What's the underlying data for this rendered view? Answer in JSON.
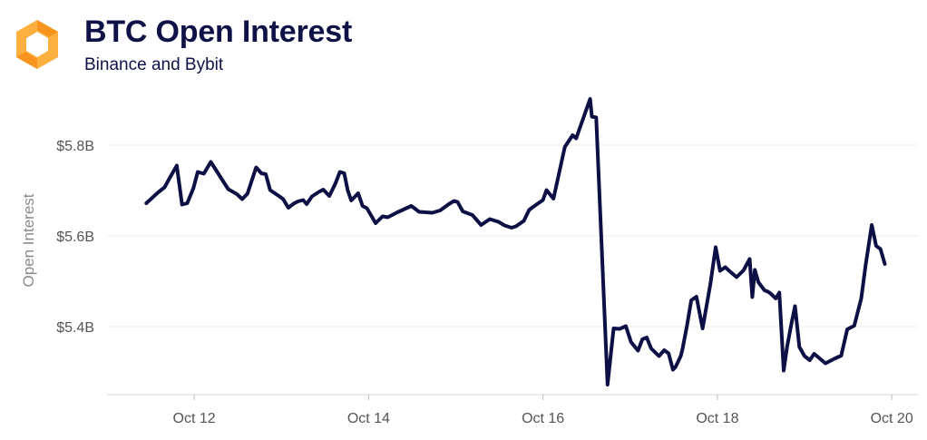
{
  "header": {
    "title": "BTC Open Interest",
    "subtitle": "Binance and Bybit",
    "logo_colors": [
      "#f7941d",
      "#fbb040"
    ]
  },
  "chart_data": {
    "type": "line",
    "title": "BTC Open Interest",
    "subtitle": "Binance and Bybit",
    "xlabel": "",
    "ylabel": "Open Interest",
    "ylim": [
      5.25,
      5.92
    ],
    "xlim": [
      11.0,
      20.3
    ],
    "grid": true,
    "line_color": "#0d1045",
    "y_ticks": [
      {
        "value": 5.4,
        "label": "$5.4B"
      },
      {
        "value": 5.6,
        "label": "$5.6B"
      },
      {
        "value": 5.8,
        "label": "$5.8B"
      }
    ],
    "x_ticks": [
      {
        "value": 12,
        "label": "Oct 12"
      },
      {
        "value": 14,
        "label": "Oct 14"
      },
      {
        "value": 16,
        "label": "Oct 16"
      },
      {
        "value": 18,
        "label": "Oct 18"
      },
      {
        "value": 20,
        "label": "Oct 20"
      }
    ],
    "series": [
      {
        "x": [
          11.45,
          11.58,
          11.66,
          11.72,
          11.8,
          11.86,
          11.92,
          11.99,
          12.04,
          12.11,
          12.19,
          12.39,
          12.49,
          12.55,
          12.61,
          12.71,
          12.77,
          12.82,
          12.87,
          12.97,
          13.02,
          13.08,
          13.14,
          13.19,
          13.25,
          13.29,
          13.35,
          13.43,
          13.48,
          13.55,
          13.62,
          13.67,
          13.72,
          13.76,
          13.8,
          13.88,
          13.93,
          13.98,
          14.08,
          14.16,
          14.22,
          14.33,
          14.49,
          14.58,
          14.73,
          14.82,
          14.92,
          14.98,
          15.02,
          15.08,
          15.19,
          15.29,
          15.39,
          15.49,
          15.56,
          15.64,
          15.69,
          15.78,
          15.84,
          15.88,
          16.0,
          16.04,
          16.12,
          16.25,
          16.34,
          16.38,
          16.54,
          16.56,
          16.61,
          16.74,
          16.81,
          16.88,
          16.95,
          17.01,
          17.09,
          17.14,
          17.19,
          17.24,
          17.33,
          17.39,
          17.44,
          17.49,
          17.52,
          17.58,
          17.6,
          17.65,
          17.7,
          17.76,
          17.83,
          17.92,
          17.98,
          18.03,
          18.09,
          18.14,
          18.22,
          18.3,
          18.37,
          18.4,
          18.43,
          18.47,
          18.54,
          18.58,
          18.61,
          18.67,
          18.71,
          18.76,
          18.8,
          18.85,
          18.89,
          18.94,
          19.0,
          19.06,
          19.11,
          19.24,
          19.34,
          19.42,
          19.49,
          19.57,
          19.65,
          19.7,
          19.77,
          19.82,
          19.87,
          19.92
        ],
        "y": [
          5.672,
          5.695,
          5.707,
          5.728,
          5.755,
          5.669,
          5.672,
          5.705,
          5.741,
          5.737,
          5.763,
          5.703,
          5.692,
          5.681,
          5.693,
          5.751,
          5.738,
          5.736,
          5.701,
          5.688,
          5.681,
          5.662,
          5.671,
          5.676,
          5.679,
          5.67,
          5.687,
          5.697,
          5.702,
          5.688,
          5.716,
          5.741,
          5.738,
          5.701,
          5.678,
          5.694,
          5.666,
          5.661,
          5.628,
          5.643,
          5.641,
          5.652,
          5.666,
          5.653,
          5.651,
          5.656,
          5.67,
          5.677,
          5.675,
          5.654,
          5.646,
          5.624,
          5.637,
          5.631,
          5.623,
          5.618,
          5.621,
          5.633,
          5.657,
          5.663,
          5.679,
          5.701,
          5.682,
          5.796,
          5.822,
          5.815,
          5.902,
          5.863,
          5.861,
          5.272,
          5.396,
          5.395,
          5.401,
          5.366,
          5.347,
          5.372,
          5.376,
          5.352,
          5.335,
          5.348,
          5.341,
          5.305,
          5.311,
          5.335,
          5.351,
          5.401,
          5.458,
          5.466,
          5.396,
          5.494,
          5.575,
          5.523,
          5.531,
          5.522,
          5.509,
          5.524,
          5.549,
          5.465,
          5.525,
          5.498,
          5.48,
          5.477,
          5.473,
          5.462,
          5.475,
          5.303,
          5.356,
          5.407,
          5.445,
          5.355,
          5.335,
          5.326,
          5.34,
          5.319,
          5.329,
          5.336,
          5.394,
          5.402,
          5.462,
          5.535,
          5.624,
          5.578,
          5.571,
          5.538
        ]
      }
    ]
  }
}
